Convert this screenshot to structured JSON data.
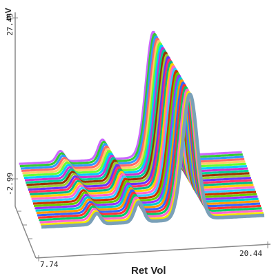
{
  "chart_data": {
    "type": "line",
    "view": "3d-waterfall",
    "xlabel": "Ret Vol",
    "ylabel": "mV",
    "x_tick_labels": [
      "7.74",
      "20.44"
    ],
    "y_tick_labels": [
      "-2.99",
      "27.45"
    ],
    "xlim": [
      7.74,
      20.44
    ],
    "ylim": [
      -2.99,
      27.45
    ],
    "peaks": [
      {
        "ret_vol": 10.9,
        "height_mv": 2.1,
        "width": 0.22
      },
      {
        "ret_vol": 13.3,
        "height_mv": 3.9,
        "width": 0.25
      },
      {
        "ret_vol": 16.2,
        "height_mv": 24.5,
        "width": 0.42
      }
    ],
    "series_colors": [
      "#7aa0b8",
      "#f2e600",
      "#ff66cc",
      "#00cc66",
      "#ff3333",
      "#3366ff",
      "#ff9900",
      "#00cccc",
      "#9933ff",
      "#66cc00",
      "#cc3300",
      "#33ccff",
      "#ff66cc",
      "#ffcc00",
      "#00bb88",
      "#ff3366",
      "#6633ff",
      "#99cc33",
      "#993300",
      "#00cc99",
      "#cc33cc",
      "#00ccff",
      "#66ff33",
      "#ffcc66",
      "#ff6666",
      "#3399ff",
      "#33cc33",
      "#cc66ff"
    ]
  }
}
